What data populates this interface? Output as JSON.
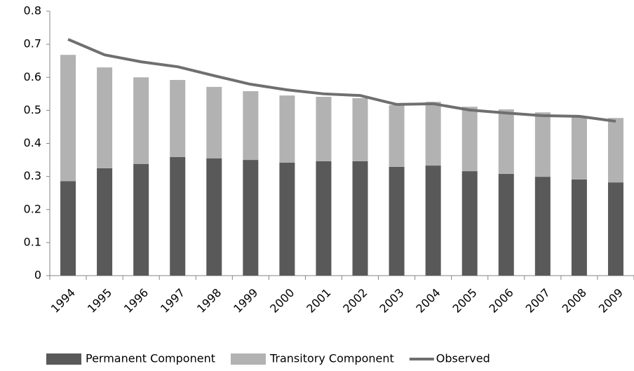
{
  "chart_data": {
    "type": "bar",
    "stacked": true,
    "categories": [
      "1994",
      "1995",
      "1996",
      "1997",
      "1998",
      "1999",
      "2000",
      "2001",
      "2002",
      "2003",
      "2004",
      "2005",
      "2006",
      "2007",
      "2008",
      "2009"
    ],
    "series": [
      {
        "name": "Permanent Component",
        "color": "#595959",
        "values": [
          0.286,
          0.325,
          0.338,
          0.359,
          0.355,
          0.35,
          0.342,
          0.346,
          0.346,
          0.329,
          0.333,
          0.316,
          0.308,
          0.299,
          0.291,
          0.282
        ]
      },
      {
        "name": "Transitory Component",
        "color": "#b2b2b2",
        "values": [
          0.382,
          0.305,
          0.262,
          0.233,
          0.216,
          0.208,
          0.203,
          0.195,
          0.191,
          0.187,
          0.193,
          0.195,
          0.195,
          0.195,
          0.191,
          0.195
        ]
      },
      {
        "name": "Observed",
        "color": "#6f6f6f",
        "type": "line",
        "values": [
          0.715,
          0.668,
          0.647,
          0.632,
          0.605,
          0.579,
          0.562,
          0.55,
          0.545,
          0.518,
          0.52,
          0.501,
          0.492,
          0.484,
          0.482,
          0.467
        ]
      }
    ],
    "ylim": [
      0,
      0.8
    ],
    "yticks": [
      0,
      0.1,
      0.2,
      0.3,
      0.4,
      0.5,
      0.6,
      0.7,
      0.8
    ],
    "grid": false,
    "legend": "bottom"
  }
}
